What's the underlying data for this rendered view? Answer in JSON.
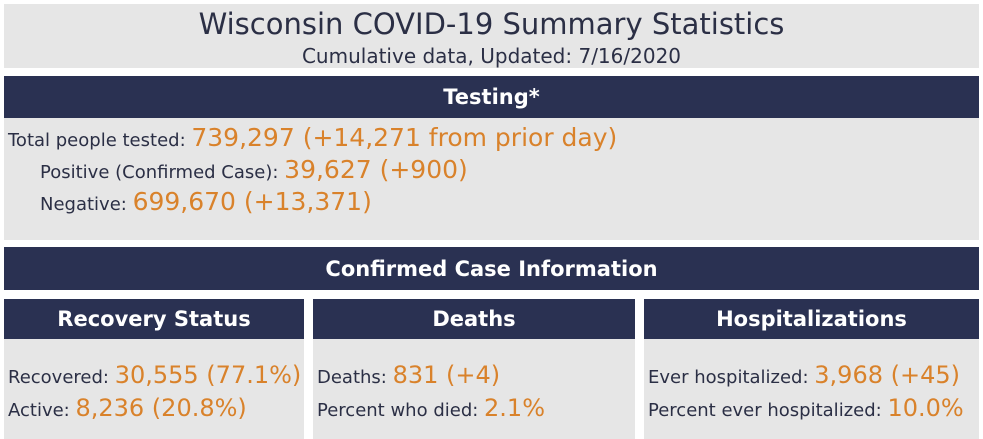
{
  "header": {
    "title": "Wisconsin COVID-19 Summary Statistics",
    "subtitle": "Cumulative data, Updated: 7/16/2020"
  },
  "testing": {
    "heading": "Testing*",
    "total_label": "Total people tested: ",
    "total_value": "739,297 (+14,271 from prior day)",
    "positive_label": "Positive (Confirmed Case): ",
    "positive_value": "39,627 (+900)",
    "negative_label": "Negative: ",
    "negative_value": "699,670 (+13,371)"
  },
  "confirmed": {
    "heading": "Confirmed Case Information"
  },
  "recovery": {
    "heading": "Recovery Status",
    "recovered_label": "Recovered: ",
    "recovered_value": "30,555 (77.1%)",
    "active_label": "Active: ",
    "active_value": "8,236 (20.8%)"
  },
  "deaths": {
    "heading": "Deaths",
    "deaths_label": "Deaths: ",
    "deaths_value": "831 (+4)",
    "percent_label": "Percent who died: ",
    "percent_value": "2.1%"
  },
  "hospitalizations": {
    "heading": "Hospitalizations",
    "ever_label": "Ever hospitalized: ",
    "ever_value": "3,968 (+45)",
    "percent_label": "Percent ever hospitalized: ",
    "percent_value": "10.0%"
  },
  "colors": {
    "bar": "#2a3152",
    "panel": "#e6e6e6",
    "accent": "#d9822b",
    "text": "#2b2f45"
  }
}
